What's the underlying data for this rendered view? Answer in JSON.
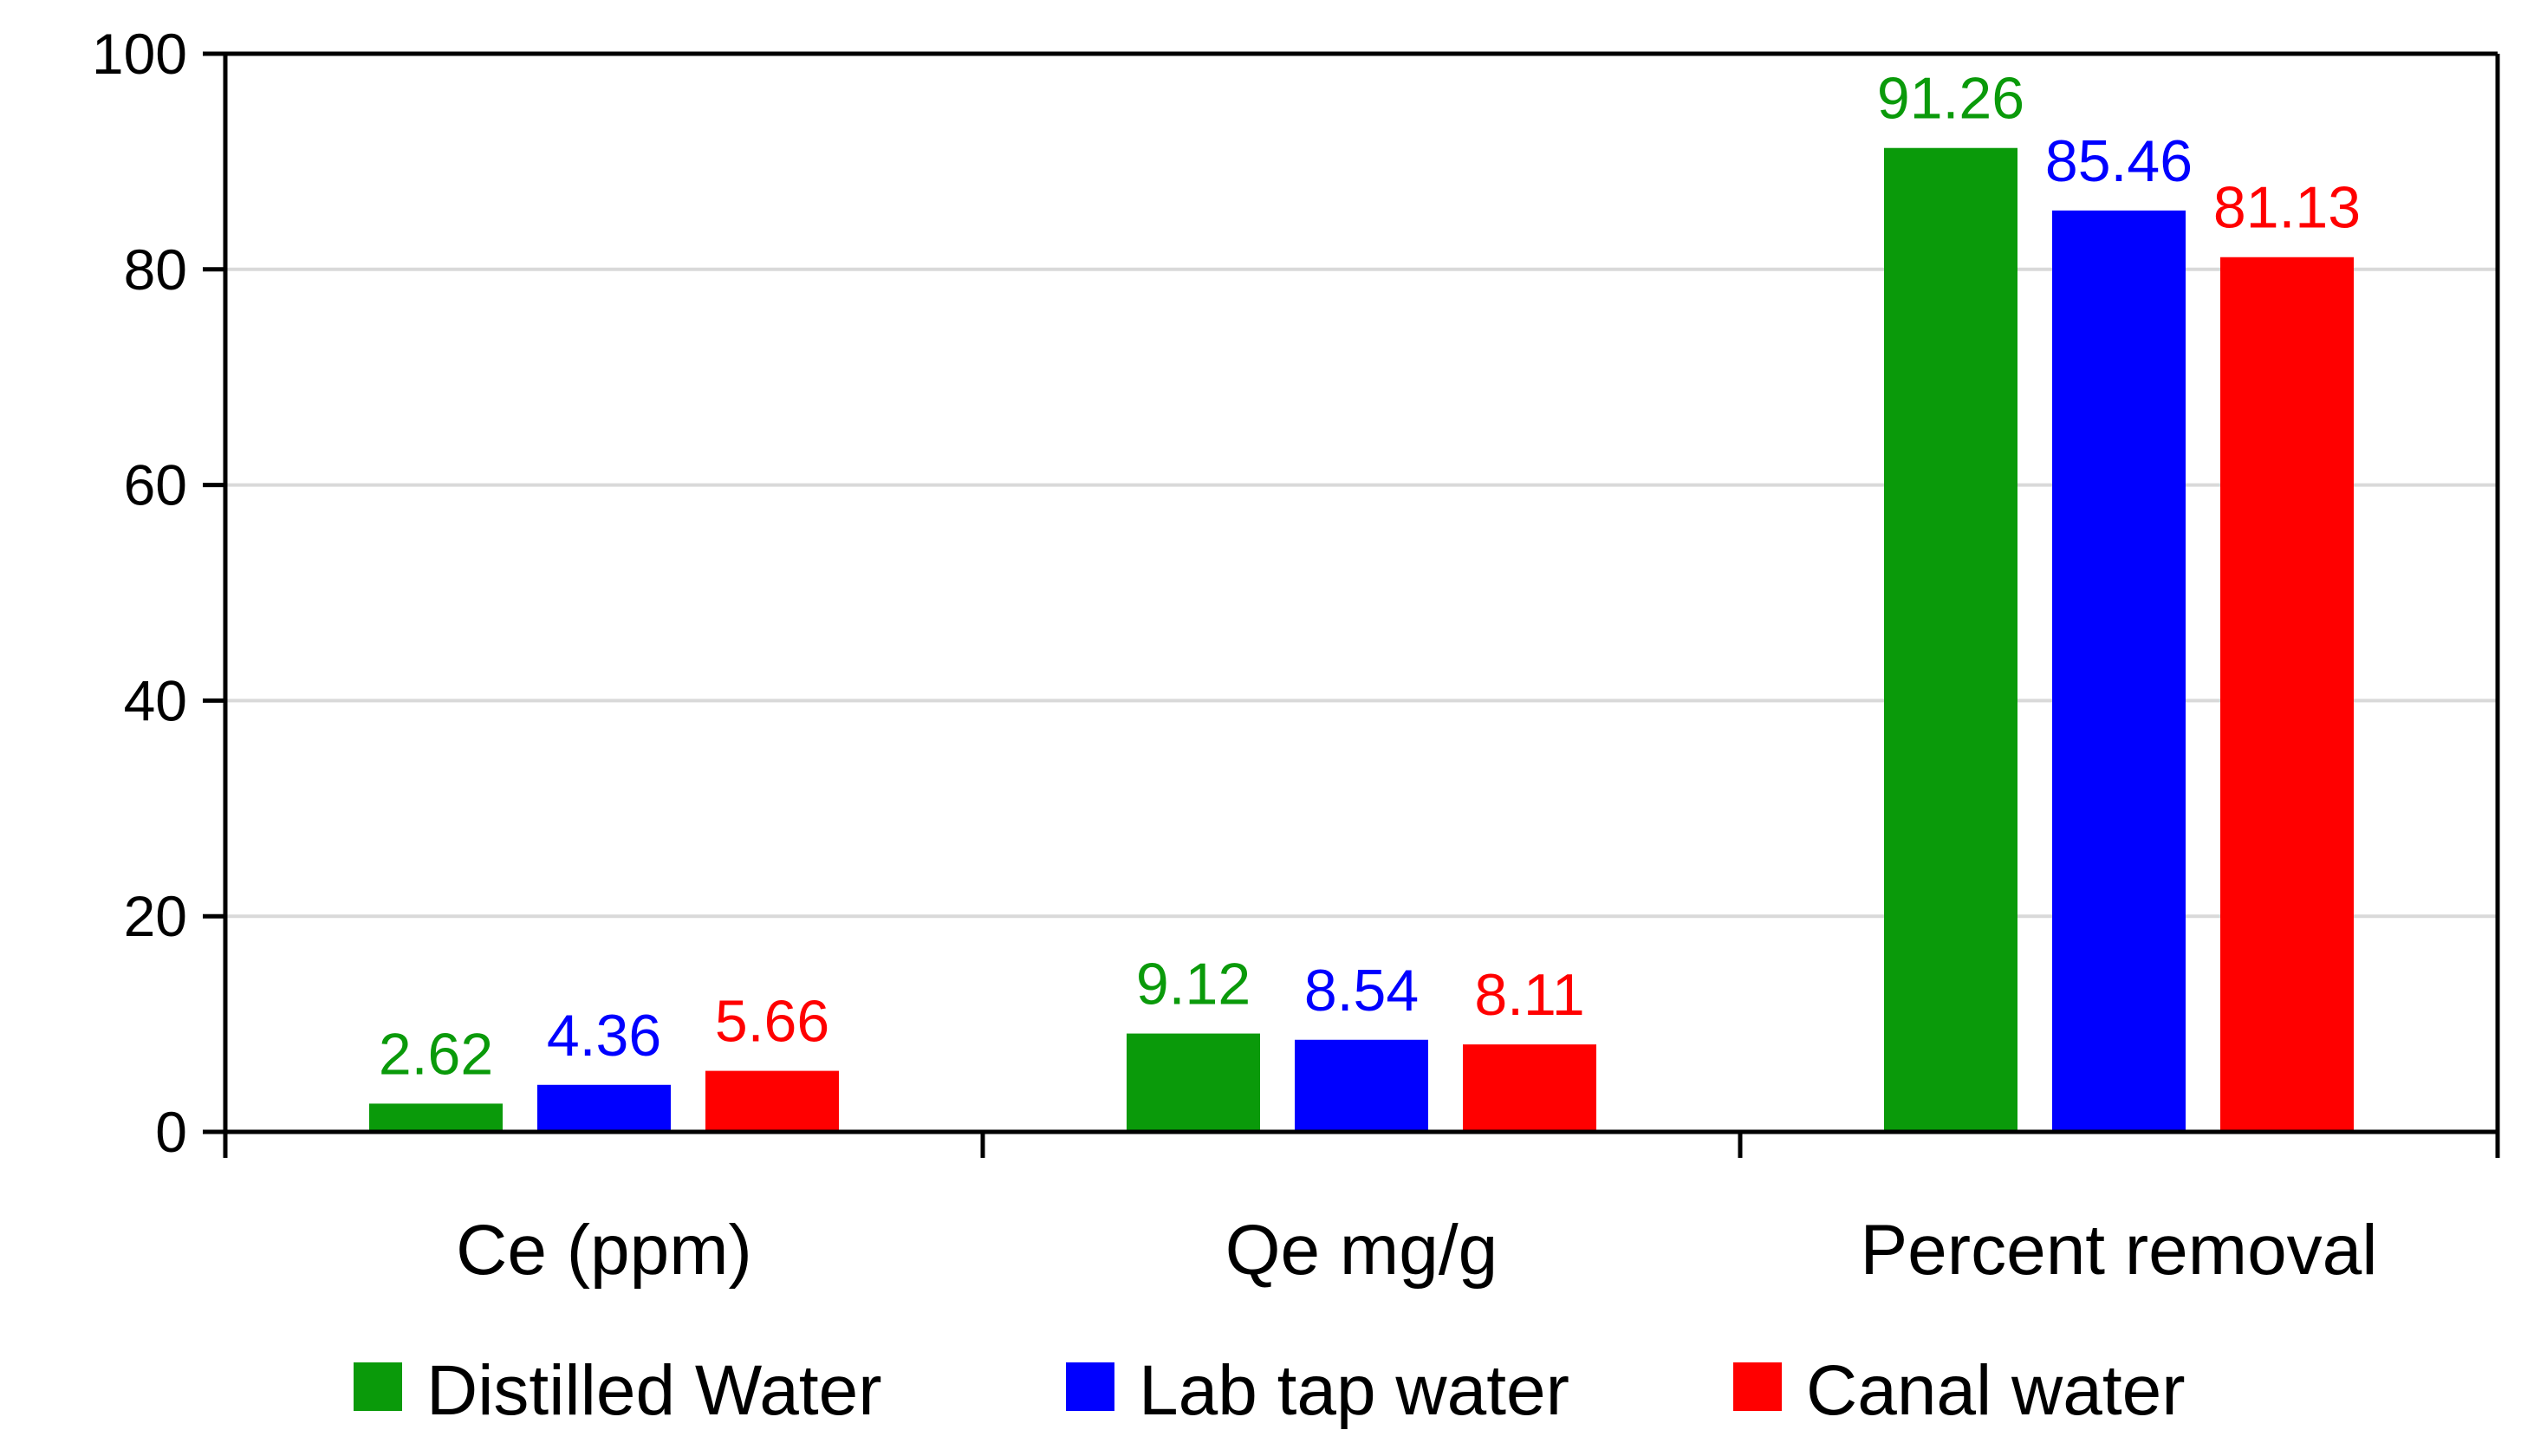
{
  "chart_data": {
    "type": "bar",
    "title": "",
    "xlabel": "",
    "ylabel": "",
    "ylim": [
      0,
      100
    ],
    "yticks": [
      0,
      20,
      40,
      60,
      80,
      100
    ],
    "grid": true,
    "legend_position": "bottom",
    "categories": [
      "Ce (ppm)",
      "Qe mg/g",
      "Percent removal"
    ],
    "series": [
      {
        "name": "Distilled Water",
        "color": "#0a9a0a",
        "values": [
          2.62,
          9.12,
          91.26
        ],
        "labels": [
          "2.62",
          "9.12",
          "91.26"
        ]
      },
      {
        "name": "Lab tap water",
        "color": "#0000ff",
        "values": [
          4.36,
          8.54,
          85.46
        ],
        "labels": [
          "4.36",
          "8.54",
          "85.46"
        ]
      },
      {
        "name": "Canal water",
        "color": "#ff0000",
        "values": [
          5.66,
          8.11,
          81.13
        ],
        "labels": [
          "5.66",
          "8.11",
          "81.13"
        ]
      }
    ]
  }
}
